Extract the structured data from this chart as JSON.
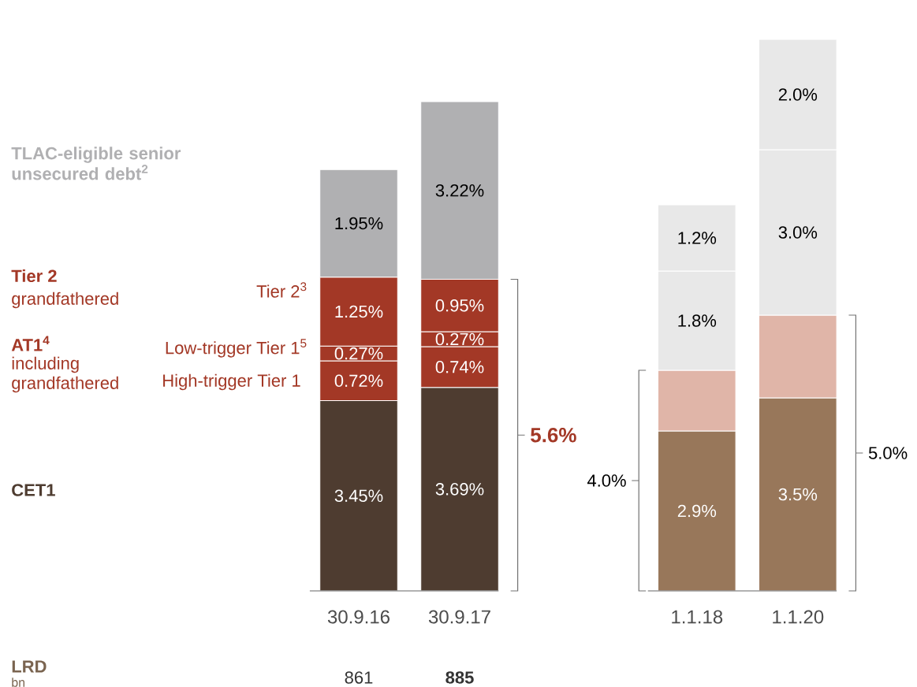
{
  "chart_data": {
    "type": "bar",
    "stacked": true,
    "categories": [
      "30.9.16",
      "30.9.17",
      "1.1.18",
      "1.1.20"
    ],
    "series": [
      {
        "name": "CET1",
        "colors": [
          "#4e3c30",
          "#4e3c30",
          "#98775a",
          "#98775a"
        ],
        "values": [
          3.45,
          3.69,
          2.9,
          3.5
        ],
        "value_labels": [
          "3.45%",
          "3.69%",
          "2.9%",
          "3.5%"
        ]
      },
      {
        "name": "High-trigger Tier 1",
        "color": "#a33826",
        "values": [
          0.72,
          0.74,
          null,
          null
        ],
        "value_labels": [
          "0.72%",
          "0.74%",
          null,
          null
        ]
      },
      {
        "name": "Low-trigger Tier 1$^{5}$",
        "color": "#a33826",
        "values": [
          0.27,
          0.27,
          null,
          null
        ],
        "value_labels": [
          "0.27%",
          "0.27%",
          null,
          null
        ]
      },
      {
        "color": "#e0b5a8",
        "values": [
          null,
          null,
          1.1,
          1.5
        ]
      },
      {
        "name": "Tier 2$^{3}$",
        "color": "#a33826",
        "values": [
          1.25,
          0.95,
          null,
          null
        ],
        "value_labels": [
          "1.25%",
          "0.95%",
          null,
          null
        ]
      },
      {
        "name": "TLAC-eligible senior unsecured debt$^{2}$",
        "colors": [
          "#b0b0b2",
          "#b0b0b2",
          "#e8e8e8",
          "#e8e8e8"
        ],
        "values": [
          1.95,
          3.22,
          1.8,
          3.0
        ],
        "value_labels": [
          "1.95%",
          "3.22%",
          "1.8%",
          "3.0%"
        ]
      },
      {
        "color": "#e8e8e8",
        "values": [
          null,
          null,
          1.2,
          2.0
        ],
        "value_labels": [
          null,
          null,
          "1.2%",
          "2.0%"
        ]
      }
    ],
    "annotations": [
      "Tier 2",
      "grandfathered",
      "AT1$^{4}$",
      "including",
      "grandfathered",
      "LRD",
      "bn",
      "861",
      "885",
      "5.6%",
      "4.0%",
      "5.0%"
    ]
  }
}
